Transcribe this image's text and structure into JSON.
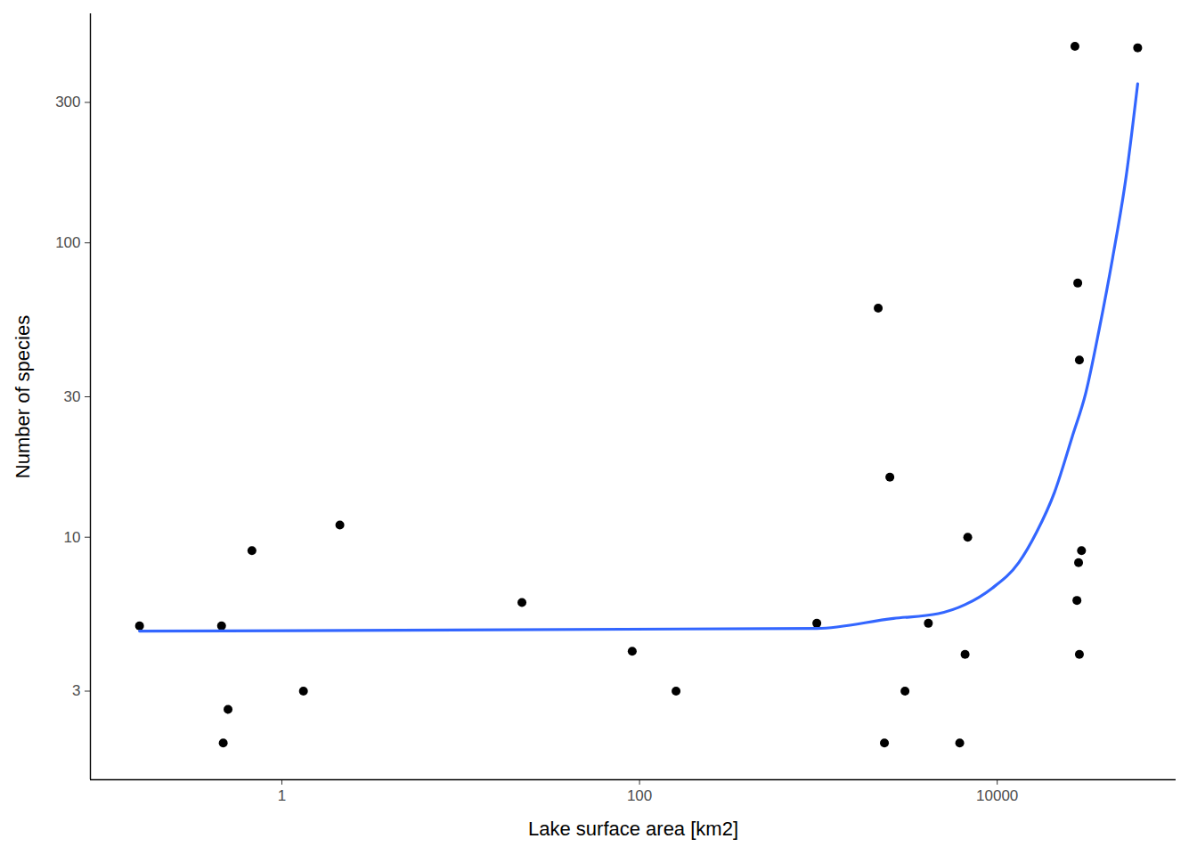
{
  "chart_data": {
    "type": "scatter",
    "x_label": "Lake surface area [km2]",
    "y_label": "Number of species",
    "log": true,
    "grid": false,
    "xlim": [
      0.085,
      100000
    ],
    "ylim": [
      1.5,
      600
    ],
    "xticks": [
      1,
      100,
      10000
    ],
    "yticks": [
      3,
      10,
      30,
      100,
      300
    ],
    "series": [
      {
        "type": "scatter",
        "color": "#000000",
        "marker": "circle",
        "x": [
          0.16,
          0.46,
          0.47,
          0.5,
          0.68,
          1.32,
          2.11,
          22,
          91,
          160,
          980,
          2160,
          2510,
          2340,
          3050,
          4120,
          6170,
          6610,
          6840,
          27200,
          61000,
          28200,
          28800,
          29600,
          28500,
          27900,
          28800
        ],
        "values": [
          5,
          5,
          2,
          2.6,
          9,
          3,
          11,
          6,
          4.1,
          3,
          5.1,
          60,
          16,
          2,
          3,
          5.1,
          2,
          4,
          10,
          465,
          460,
          73,
          40,
          9,
          8.2,
          6.1,
          4
        ]
      },
      {
        "type": "line",
        "color": "#3366FF",
        "line_style": "solid",
        "x": [
          0.16,
          980,
          2630,
          4680,
          6610,
          9330,
          13200,
          16600,
          20900,
          26300,
          31300,
          37200,
          44200,
          52500,
          61000
        ],
        "values": [
          4.8,
          4.9,
          5.3,
          5.5,
          5.9,
          6.7,
          8.2,
          10.4,
          14.2,
          22,
          31,
          51,
          89,
          167,
          347
        ]
      }
    ]
  }
}
